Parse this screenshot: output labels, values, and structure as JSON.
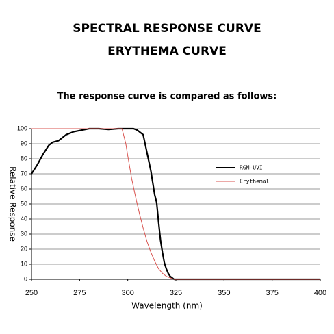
{
  "header": {
    "title": "SPECTRAL RESPONSE CURVE",
    "subtitle": "ERYTHEMA CURVE",
    "caption": "The response curve is compared as follows:"
  },
  "chart_data": {
    "type": "line",
    "xlabel": "Wavelength (nm)",
    "ylabel": "Relative Response",
    "xlim": [
      250,
      400
    ],
    "xticks": [
      250,
      275,
      300,
      325,
      350,
      375,
      400
    ],
    "ylim": [
      0,
      100
    ],
    "yticks": [
      0,
      10,
      20,
      30,
      40,
      50,
      60,
      70,
      80,
      90,
      100
    ],
    "grid": true,
    "legend": "right",
    "series": [
      {
        "name": "RGM-UVI",
        "color": "#000000",
        "x": [
          250,
          253,
          256,
          259,
          261,
          264,
          266,
          268,
          272,
          276,
          280,
          285,
          290,
          295,
          300,
          303,
          305,
          307,
          308,
          309,
          310,
          312,
          313,
          314,
          315,
          316,
          317,
          318,
          319,
          320,
          321,
          322,
          323,
          324,
          325,
          400
        ],
        "values": [
          70,
          76,
          83,
          89,
          91,
          92,
          94,
          96,
          98,
          99,
          100,
          100,
          99.5,
          100,
          100,
          100,
          99,
          97,
          96,
          90,
          84,
          72,
          64,
          56,
          51,
          38,
          26,
          18,
          11,
          7,
          4,
          2,
          1,
          0,
          0,
          0
        ]
      },
      {
        "name": "Erythemal",
        "color": "#d9534f",
        "x": [
          250,
          297,
          299,
          300,
          302,
          304,
          306,
          308,
          310,
          312,
          314,
          316,
          318,
          320,
          322,
          324,
          400
        ],
        "values": [
          100,
          100,
          90,
          82,
          67,
          55,
          44,
          34,
          25,
          18,
          12,
          7,
          4,
          2,
          1,
          0,
          0
        ]
      }
    ]
  }
}
